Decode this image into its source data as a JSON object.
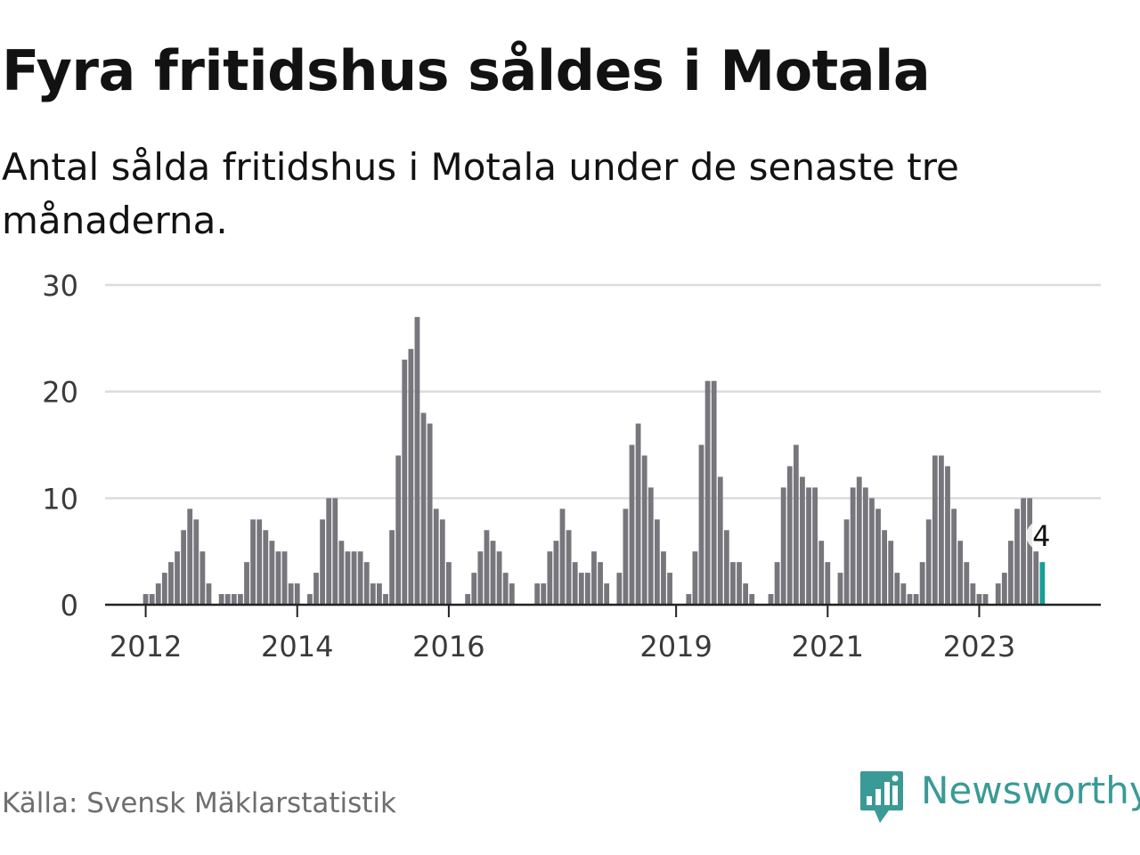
{
  "title": "Fyra fritidshus såldes i Motala",
  "subtitle": "Antal sålda fritidshus i Motala under de senaste tre månaderna.",
  "source": "Källa: Svensk Mäklarstatistik",
  "brand": "Newsworthy",
  "colors": {
    "bar": "#77767c",
    "highlight": "#1a9e97",
    "grid": "#dcdcdc",
    "axis": "#222222",
    "brand": "#3a9a96"
  },
  "chart_data": {
    "type": "bar",
    "xlabel": "",
    "ylabel": "",
    "ylim": [
      0,
      30
    ],
    "yticks": [
      0,
      10,
      20,
      30
    ],
    "grid": true,
    "start": "2011-11",
    "end": "2023-11",
    "x_ticks": [
      "2012",
      "2014",
      "2016",
      "2019",
      "2021",
      "2023"
    ],
    "values": [
      0,
      0,
      1,
      1,
      2,
      3,
      4,
      5,
      7,
      9,
      8,
      5,
      2,
      0,
      1,
      1,
      1,
      1,
      4,
      8,
      8,
      7,
      6,
      5,
      5,
      2,
      2,
      0,
      1,
      3,
      8,
      10,
      10,
      6,
      5,
      5,
      5,
      4,
      2,
      2,
      1,
      7,
      14,
      23,
      24,
      27,
      18,
      17,
      9,
      8,
      4,
      0,
      0,
      1,
      3,
      5,
      7,
      6,
      5,
      3,
      2,
      0,
      0,
      0,
      2,
      2,
      5,
      6,
      9,
      7,
      4,
      3,
      3,
      5,
      4,
      2,
      0,
      3,
      9,
      15,
      17,
      14,
      11,
      8,
      5,
      3,
      0,
      0,
      1,
      5,
      15,
      21,
      21,
      12,
      7,
      4,
      4,
      2,
      1,
      0,
      0,
      1,
      4,
      11,
      13,
      15,
      12,
      11,
      11,
      6,
      4,
      0,
      3,
      8,
      11,
      12,
      11,
      10,
      9,
      7,
      6,
      3,
      2,
      1,
      1,
      4,
      8,
      14,
      14,
      13,
      9,
      6,
      4,
      2,
      1,
      1,
      0,
      2,
      3,
      6,
      9,
      10,
      10,
      5,
      4
    ],
    "highlight_last": true,
    "last_value_label": "4"
  }
}
